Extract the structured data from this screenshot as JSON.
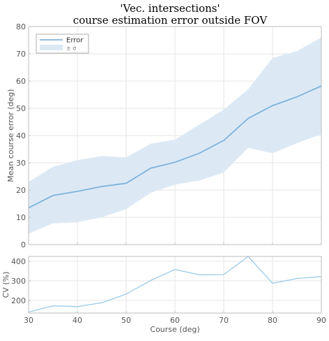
{
  "chart_data": [
    {
      "type": "line",
      "title": "'Vec. intersections'",
      "subtitle": "course estimation error outside FOV",
      "xlabel": "",
      "ylabel": "Mean course error (deg)",
      "xlim": [
        30,
        90
      ],
      "ylim": [
        0,
        80
      ],
      "x": [
        30,
        35,
        40,
        45,
        50,
        55,
        60,
        65,
        70,
        75,
        80,
        85,
        90
      ],
      "xticks": [
        30,
        40,
        50,
        60,
        70,
        80,
        90
      ],
      "yticks": [
        0,
        10,
        20,
        30,
        40,
        50,
        60,
        70,
        80
      ],
      "grid": true,
      "legend": {
        "placement": "top-left",
        "entries": [
          "Error",
          "± σ"
        ]
      },
      "series": [
        {
          "name": "Error",
          "values": [
            13.5,
            18,
            19.5,
            21.3,
            22.5,
            28,
            30.2,
            33.5,
            38.2,
            46.3,
            51,
            54.2,
            58.2
          ],
          "color": "#7fb2da"
        }
      ],
      "band": {
        "name": "± σ",
        "lower": [
          4,
          7.8,
          8.2,
          10,
          13,
          19,
          22,
          23.5,
          26.5,
          35.5,
          33.5,
          37.2,
          40.5
        ],
        "upper": [
          23,
          28.5,
          31,
          32.5,
          32,
          37,
          38.5,
          44,
          49.5,
          57,
          68.5,
          71,
          76
        ],
        "color": "#dce9f5"
      }
    },
    {
      "type": "line",
      "title": "",
      "xlabel": "Course (deg)",
      "ylabel": "CV (%)",
      "xlim": [
        30,
        90
      ],
      "ylim": [
        135,
        425
      ],
      "x": [
        30,
        35,
        40,
        45,
        50,
        55,
        60,
        65,
        70,
        75,
        80,
        85,
        90
      ],
      "xticks": [
        30,
        40,
        50,
        60,
        70,
        80,
        90
      ],
      "yticks": [
        200,
        300,
        400
      ],
      "grid": true,
      "series": [
        {
          "values": [
            140,
            172,
            168,
            188,
            232,
            302,
            358,
            331,
            332,
            425,
            288,
            312,
            322
          ],
          "color": "#9ccbe8"
        }
      ]
    }
  ]
}
